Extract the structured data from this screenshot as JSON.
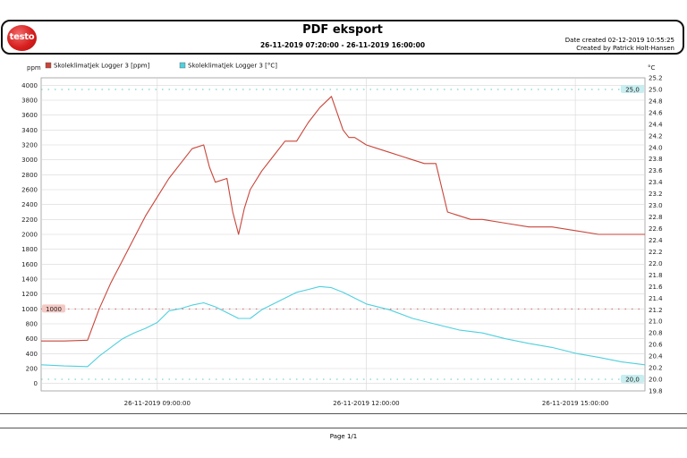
{
  "header": {
    "logo_text": "testo",
    "title": "PDF eksport",
    "range": "26-11-2019 07:20:00 - 26-11-2019 16:00:00",
    "date_created": "Date created 02-12-2019 10:55:25",
    "created_by": "Created by Patrick Holt-Hansen"
  },
  "footer": {
    "page": "Page 1/1"
  },
  "colors": {
    "co2": "#c8453a",
    "temp": "#4fd0de",
    "grid": "#d6d6d6",
    "co2_limit": "#d06060",
    "temp_limit": "#5ac8c8"
  },
  "chart_data": {
    "type": "line",
    "x_type": "time",
    "x_range": [
      "26-11-2019 07:20:00",
      "26-11-2019 16:00:00"
    ],
    "x_ticks": [
      "26-11-2019 09:00:00",
      "26-11-2019 12:00:00",
      "26-11-2019 15:00:00"
    ],
    "left_axis": {
      "unit": "ppm",
      "ylim": [
        -100,
        4100
      ],
      "ticks": [
        0,
        200,
        400,
        600,
        800,
        1000,
        1200,
        1400,
        1600,
        1800,
        2000,
        2200,
        2400,
        2600,
        2800,
        3000,
        3200,
        3400,
        3600,
        3800,
        4000
      ]
    },
    "right_axis": {
      "unit": "°C",
      "ylim": [
        19.8,
        25.2
      ],
      "ticks": [
        "19.8",
        "20.0",
        "20.2",
        "20.4",
        "20.6",
        "20.8",
        "21.0",
        "21.2",
        "21.4",
        "21.6",
        "21.8",
        "22.0",
        "22.2",
        "22.4",
        "22.6",
        "22.8",
        "23.0",
        "23.2",
        "23.4",
        "23.6",
        "23.8",
        "24.0",
        "24.2",
        "24.4",
        "24.6",
        "24.8",
        "25.0",
        "25.2"
      ]
    },
    "grid": true,
    "legend_position": "top-left",
    "thresholds": [
      {
        "axis": "left",
        "value": 1000,
        "label": "1000"
      },
      {
        "axis": "right",
        "value": 25.0,
        "label": "25,0"
      },
      {
        "axis": "right",
        "value": 20.0,
        "label": "20,0"
      }
    ],
    "series": [
      {
        "name": "Skoleklimatjek Logger 3 [ppm]",
        "axis": "left",
        "x": [
          "07:20",
          "07:40",
          "08:00",
          "08:10",
          "08:20",
          "08:30",
          "08:40",
          "08:50",
          "09:00",
          "09:10",
          "09:20",
          "09:30",
          "09:40",
          "09:45",
          "09:50",
          "10:00",
          "10:05",
          "10:10",
          "10:15",
          "10:20",
          "10:30",
          "10:40",
          "10:50",
          "11:00",
          "11:10",
          "11:20",
          "11:30",
          "11:40",
          "11:45",
          "11:50",
          "12:00",
          "12:10",
          "12:20",
          "12:30",
          "12:40",
          "12:50",
          "13:00",
          "13:10",
          "13:20",
          "13:30",
          "13:40",
          "14:00",
          "14:20",
          "14:40",
          "15:00",
          "15:20",
          "15:40",
          "16:00"
        ],
        "y": [
          570,
          570,
          580,
          1000,
          1350,
          1650,
          1950,
          2250,
          2500,
          2750,
          2950,
          3150,
          3200,
          2900,
          2700,
          2750,
          2300,
          2000,
          2350,
          2600,
          2850,
          3050,
          3250,
          3250,
          3500,
          3700,
          3850,
          3400,
          3300,
          3300,
          3200,
          3150,
          3100,
          3050,
          3000,
          2950,
          2950,
          2300,
          2250,
          2200,
          2200,
          2150,
          2100,
          2100,
          2050,
          2000,
          2000,
          2000
        ]
      },
      {
        "name": "Skoleklimatjek Logger 3 [°C]",
        "axis": "right",
        "x": [
          "07:20",
          "07:40",
          "08:00",
          "08:10",
          "08:20",
          "08:30",
          "08:40",
          "08:50",
          "09:00",
          "09:10",
          "09:20",
          "09:30",
          "09:40",
          "09:50",
          "10:00",
          "10:10",
          "10:20",
          "10:30",
          "10:40",
          "10:50",
          "11:00",
          "11:10",
          "11:20",
          "11:30",
          "11:40",
          "12:00",
          "12:20",
          "12:40",
          "13:00",
          "13:20",
          "13:40",
          "14:00",
          "14:20",
          "14:40",
          "15:00",
          "15:20",
          "15:40",
          "16:00"
        ],
        "y": [
          20.25,
          20.23,
          20.22,
          20.4,
          20.55,
          20.7,
          20.8,
          20.88,
          20.98,
          21.18,
          21.22,
          21.28,
          21.32,
          21.25,
          21.15,
          21.05,
          21.05,
          21.2,
          21.3,
          21.4,
          21.5,
          21.55,
          21.6,
          21.58,
          21.5,
          21.3,
          21.2,
          21.05,
          20.95,
          20.85,
          20.8,
          20.7,
          20.62,
          20.55,
          20.45,
          20.38,
          20.3,
          20.25
        ]
      }
    ]
  }
}
